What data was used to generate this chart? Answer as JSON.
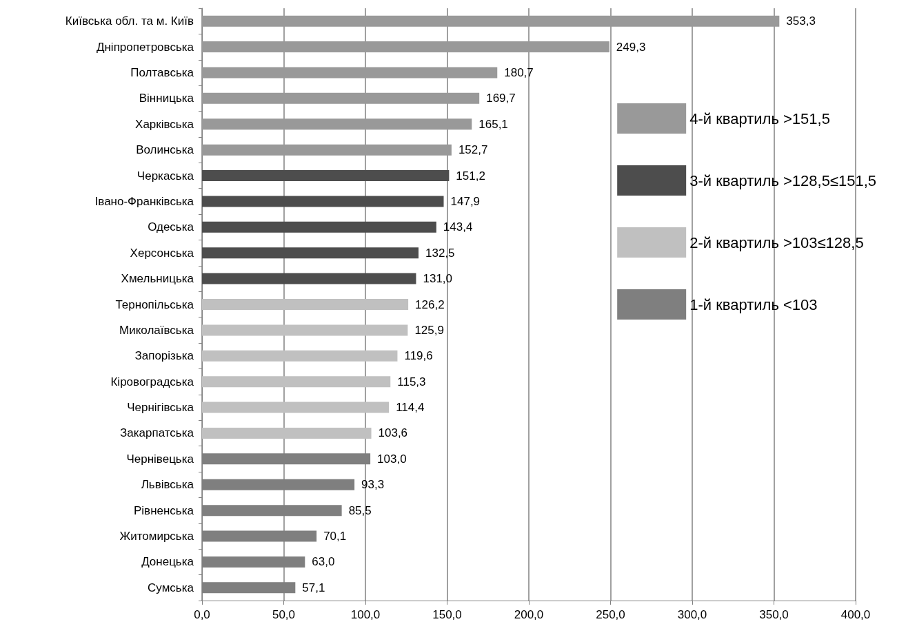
{
  "chart_data": {
    "type": "bar",
    "orientation": "horizontal",
    "categories": [
      "Київська обл. та м. Київ",
      "Дніпропетровська",
      "Полтавська",
      "Вінницька",
      "Харківська",
      "Волинська",
      "Черкаська",
      "Івано-Франківська",
      "Одеська",
      "Херсонська",
      "Хмельницька",
      "Тернопільська",
      "Миколаївська",
      "Запорізька",
      "Кіровоградська",
      "Чернігівська",
      "Закарпатська",
      "Чернівецька",
      "Львівська",
      "Рівненська",
      "Житомирська",
      "Донецька",
      "Сумська"
    ],
    "series": [
      {
        "name": "4-й квартиль >151,5",
        "color": "#999999",
        "values": [
          353.3,
          249.3,
          180.7,
          169.7,
          165.1,
          152.7,
          null,
          null,
          null,
          null,
          null,
          null,
          null,
          null,
          null,
          null,
          null,
          null,
          null,
          null,
          null,
          null,
          null
        ],
        "value_labels": [
          "353,3",
          "249,3",
          "180,7",
          "169,7",
          "165,1",
          "152,7",
          null,
          null,
          null,
          null,
          null,
          null,
          null,
          null,
          null,
          null,
          null,
          null,
          null,
          null,
          null,
          null,
          null
        ]
      },
      {
        "name": "3-й квартиль >128,5≤151,5",
        "color": "#4d4d4d",
        "values": [
          null,
          null,
          null,
          null,
          null,
          null,
          151.2,
          147.9,
          143.4,
          132.5,
          131.0,
          null,
          null,
          null,
          null,
          null,
          null,
          null,
          null,
          null,
          null,
          null,
          null
        ],
        "value_labels": [
          null,
          null,
          null,
          null,
          null,
          null,
          "151,2",
          "147,9",
          "143,4",
          "132,5",
          "131,0",
          null,
          null,
          null,
          null,
          null,
          null,
          null,
          null,
          null,
          null,
          null,
          null
        ]
      },
      {
        "name": "2-й квартиль >103≤128,5",
        "color": "#c0c0c0",
        "values": [
          null,
          null,
          null,
          null,
          null,
          null,
          null,
          null,
          null,
          null,
          null,
          126.2,
          125.9,
          119.6,
          115.3,
          114.4,
          103.6,
          null,
          null,
          null,
          null,
          null,
          null
        ],
        "value_labels": [
          null,
          null,
          null,
          null,
          null,
          null,
          null,
          null,
          null,
          null,
          null,
          "126,2",
          "125,9",
          "119,6",
          "115,3",
          "114,4",
          "103,6",
          null,
          null,
          null,
          null,
          null,
          null
        ]
      },
      {
        "name": "1-й квартиль <103",
        "color": "#7f7f7f",
        "values": [
          null,
          null,
          null,
          null,
          null,
          null,
          null,
          null,
          null,
          null,
          null,
          null,
          null,
          null,
          null,
          null,
          null,
          103.0,
          93.3,
          85.5,
          70.1,
          63.0,
          57.1
        ],
        "value_labels": [
          null,
          null,
          null,
          null,
          null,
          null,
          null,
          null,
          null,
          null,
          null,
          null,
          null,
          null,
          null,
          null,
          null,
          "103,0",
          "93,3",
          "85,5",
          "70,1",
          "63,0",
          "57,1"
        ]
      }
    ],
    "xlim": [
      0,
      400
    ],
    "xticks": [
      {
        "value": 0,
        "label": "0,0"
      },
      {
        "value": 50,
        "label": "50,0"
      },
      {
        "value": 100,
        "label": "100,0"
      },
      {
        "value": 150,
        "label": "150,0"
      },
      {
        "value": 200,
        "label": "200,0"
      },
      {
        "value": 250,
        "label": "250,0"
      },
      {
        "value": 300,
        "label": "300,0"
      },
      {
        "value": 350,
        "label": "350,0"
      },
      {
        "value": 400,
        "label": "400,0"
      }
    ],
    "grid": "x",
    "legend": "right"
  }
}
